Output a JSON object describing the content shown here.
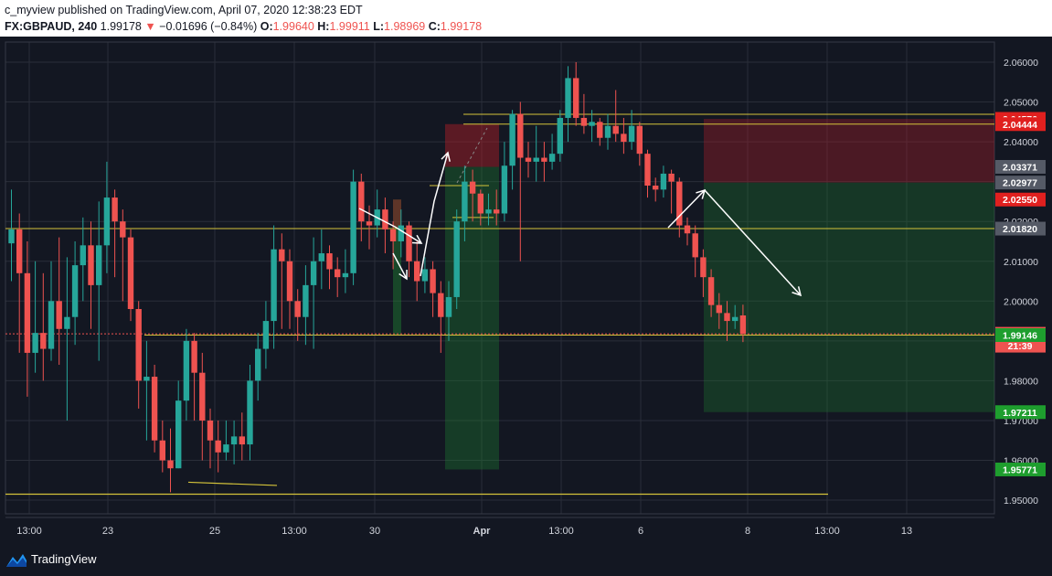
{
  "header": {
    "publisher_line": "c_myview published on TradingView.com, April 07, 2020 12:38:23 EDT",
    "symbol": "FX:GBPAUD, 240",
    "last": "1.99178",
    "change_arrow": "▼",
    "change": "−0.01696 (−0.84%)",
    "o_label": "O:",
    "o_value": "1.99640",
    "h_label": "H:",
    "h_value": "1.99911",
    "l_label": "L:",
    "l_value": "1.98969",
    "c_label": "C:",
    "c_value": "1.99178"
  },
  "footer": {
    "brand": "TradingView"
  },
  "colors": {
    "up": "#26a69a",
    "down": "#ef5350",
    "bg": "#131722",
    "grid": "#2a2e39",
    "drawing": "#d4c33a",
    "arrow": "#ffffff"
  },
  "chart_data": {
    "type": "candlestick",
    "symbol": "FX:GBPAUD",
    "interval": "240",
    "ylim": [
      1.945,
      2.065
    ],
    "y_ticks": [
      "2.06000",
      "2.05000",
      "2.04000",
      "2.03000",
      "2.02000",
      "2.01000",
      "2.00000",
      "1.99000",
      "1.98000",
      "1.97000",
      "1.96000",
      "1.95000"
    ],
    "x_ticks": [
      "13:00",
      "23",
      "25",
      "13:00",
      "30",
      "Apr",
      "13:00",
      "6",
      "8",
      "13:00",
      "13"
    ],
    "price_labels": [
      {
        "text": "2.04576",
        "value": 2.04576,
        "color": "#e0201f"
      },
      {
        "text": "2.04444",
        "value": 2.04444,
        "color": "#e0201f"
      },
      {
        "text": "2.03371",
        "value": 2.03371,
        "color": "#555a66"
      },
      {
        "text": "2.02977",
        "value": 2.02977,
        "color": "#555a66"
      },
      {
        "text": "2.02550",
        "value": 2.0255,
        "color": "#e0201f"
      },
      {
        "text": "2.01820",
        "value": 2.0182,
        "color": "#555a66"
      },
      {
        "text": "1.99178",
        "value": 1.99178,
        "color": "#ef5350"
      },
      {
        "text": "21:39",
        "value": 1.9888,
        "color": "#ef5350"
      },
      {
        "text": "1.99146",
        "value": 1.99146,
        "color": "#1e9e2e"
      },
      {
        "text": "1.97211",
        "value": 1.97211,
        "color": "#1e9e2e"
      },
      {
        "text": "1.95771",
        "value": 1.95771,
        "color": "#1e9e2e"
      }
    ],
    "candles": [
      [
        2.0145,
        2.018,
        2.028,
        2.005
      ],
      [
        2.018,
        2.007,
        2.022,
        1.987
      ],
      [
        2.007,
        1.987,
        2.015,
        1.976
      ],
      [
        1.987,
        1.992,
        2.01,
        1.982
      ],
      [
        1.992,
        1.988,
        2.007,
        1.98
      ],
      [
        1.988,
        2.0,
        2.01,
        1.985
      ],
      [
        2.0,
        1.993,
        2.016,
        1.984
      ],
      [
        1.993,
        1.996,
        2.011,
        1.97
      ],
      [
        1.996,
        2.009,
        2.015,
        1.989
      ],
      [
        2.009,
        2.014,
        2.021,
        2.0
      ],
      [
        2.014,
        2.004,
        2.02,
        1.993
      ],
      [
        2.004,
        2.014,
        2.025,
        1.985
      ],
      [
        2.014,
        2.026,
        2.035,
        2.007
      ],
      [
        2.026,
        2.02,
        2.028,
        2.006
      ],
      [
        2.02,
        2.016,
        2.023,
        2.0
      ],
      [
        2.016,
        1.998,
        2.018,
        1.995
      ],
      [
        1.998,
        1.98,
        2.0,
        1.973
      ],
      [
        1.98,
        1.981,
        1.99,
        1.965
      ],
      [
        1.981,
        1.965,
        1.984,
        1.962
      ],
      [
        1.965,
        1.96,
        1.97,
        1.957
      ],
      [
        1.96,
        1.958,
        1.968,
        1.952
      ],
      [
        1.958,
        1.975,
        1.98,
        1.958
      ],
      [
        1.975,
        1.99,
        1.993,
        1.97
      ],
      [
        1.99,
        1.982,
        1.992,
        1.97
      ],
      [
        1.982,
        1.97,
        1.987,
        1.96
      ],
      [
        1.97,
        1.965,
        1.973,
        1.958
      ],
      [
        1.965,
        1.962,
        1.97,
        1.957
      ],
      [
        1.962,
        1.964,
        1.97,
        1.96
      ],
      [
        1.964,
        1.966,
        1.97,
        1.959
      ],
      [
        1.966,
        1.964,
        1.972,
        1.96
      ],
      [
        1.964,
        1.98,
        1.984,
        1.96
      ],
      [
        1.98,
        1.988,
        1.992,
        1.975
      ],
      [
        1.988,
        1.995,
        2.0,
        1.983
      ],
      [
        1.995,
        2.013,
        2.019,
        1.988
      ],
      [
        2.013,
        2.01,
        2.017,
        1.993
      ],
      [
        2.01,
        2.0,
        2.013,
        1.993
      ],
      [
        2.0,
        1.996,
        2.003,
        1.99
      ],
      [
        1.996,
        2.004,
        2.009,
        1.989
      ],
      [
        2.004,
        2.01,
        2.016,
        1.988
      ],
      [
        2.01,
        2.012,
        2.018,
        2.003
      ],
      [
        2.012,
        2.008,
        2.014,
        2.003
      ],
      [
        2.008,
        2.006,
        2.011,
        2.001
      ],
      [
        2.006,
        2.007,
        2.013,
        2.002
      ],
      [
        2.007,
        2.03,
        2.033,
        2.004
      ],
      [
        2.03,
        2.02,
        2.032,
        2.015
      ],
      [
        2.02,
        2.019,
        2.024,
        2.013
      ],
      [
        2.019,
        2.023,
        2.028,
        2.016
      ],
      [
        2.023,
        2.018,
        2.026,
        2.012
      ],
      [
        2.018,
        2.015,
        2.02,
        2.008
      ],
      [
        2.015,
        2.019,
        2.023,
        2.011
      ],
      [
        2.019,
        2.01,
        2.02,
        2.006
      ],
      [
        2.01,
        2.005,
        2.015,
        2.0
      ],
      [
        2.005,
        2.008,
        2.011,
        2.002
      ],
      [
        2.008,
        2.002,
        2.01,
        1.996
      ],
      [
        2.002,
        1.996,
        2.005,
        1.987
      ],
      [
        1.996,
        2.001,
        2.005,
        1.99
      ],
      [
        2.001,
        2.02,
        2.023,
        1.998
      ],
      [
        2.02,
        2.03,
        2.034,
        2.015
      ],
      [
        2.03,
        2.027,
        2.033,
        2.02
      ],
      [
        2.027,
        2.022,
        2.028,
        2.019
      ],
      [
        2.022,
        2.023,
        2.027,
        2.019
      ],
      [
        2.023,
        2.022,
        2.028,
        2.019
      ],
      [
        2.022,
        2.034,
        2.04,
        2.02
      ],
      [
        2.034,
        2.047,
        2.048,
        2.028
      ],
      [
        2.047,
        2.036,
        2.05,
        2.01
      ],
      [
        2.036,
        2.035,
        2.04,
        2.031
      ],
      [
        2.035,
        2.036,
        2.044,
        2.03
      ],
      [
        2.036,
        2.035,
        2.04,
        2.03
      ],
      [
        2.035,
        2.037,
        2.042,
        2.033
      ],
      [
        2.037,
        2.046,
        2.048,
        2.035
      ],
      [
        2.046,
        2.056,
        2.059,
        2.04
      ],
      [
        2.056,
        2.046,
        2.06,
        2.044
      ],
      [
        2.046,
        2.044,
        2.052,
        2.042
      ],
      [
        2.044,
        2.045,
        2.048,
        2.04
      ],
      [
        2.045,
        2.041,
        2.046,
        2.039
      ],
      [
        2.041,
        2.044,
        2.047,
        2.038
      ],
      [
        2.044,
        2.042,
        2.053,
        2.04
      ],
      [
        2.042,
        2.04,
        2.046,
        2.037
      ],
      [
        2.04,
        2.044,
        2.048,
        2.038
      ],
      [
        2.044,
        2.037,
        2.045,
        2.034
      ],
      [
        2.037,
        2.029,
        2.038,
        2.026
      ],
      [
        2.029,
        2.028,
        2.031,
        2.025
      ],
      [
        2.028,
        2.032,
        2.034,
        2.026
      ],
      [
        2.032,
        2.03,
        2.033,
        2.022
      ],
      [
        2.03,
        2.019,
        2.031,
        2.016
      ],
      [
        2.019,
        2.017,
        2.021,
        2.014
      ],
      [
        2.017,
        2.011,
        2.019,
        2.006
      ],
      [
        2.011,
        2.006,
        2.013,
        2.001
      ],
      [
        2.006,
        1.999,
        2.008,
        1.996
      ],
      [
        1.999,
        1.997,
        2.002,
        1.993
      ],
      [
        1.997,
        1.995,
        2.0,
        1.99
      ],
      [
        1.995,
        1.996,
        1.999,
        1.993
      ],
      [
        1.9964,
        1.9918,
        1.9991,
        1.9897
      ]
    ]
  }
}
